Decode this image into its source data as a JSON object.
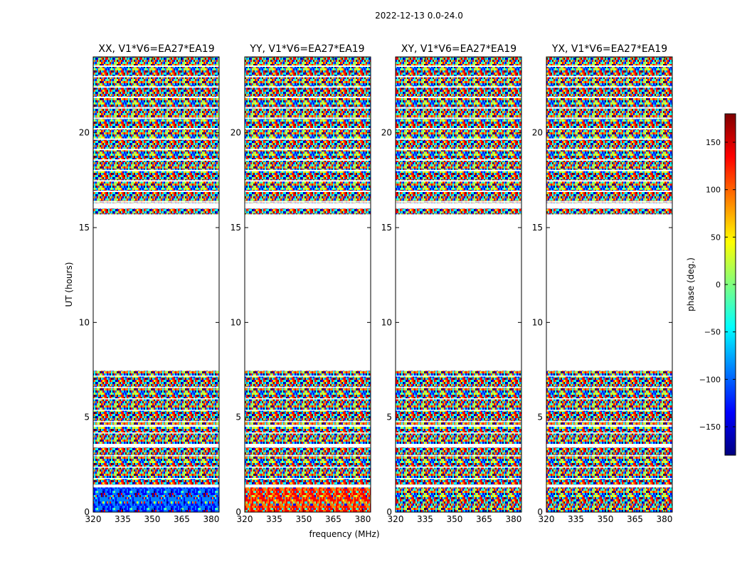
{
  "chart_data": {
    "type": "heatmap",
    "title": "2022-12-13 0.0-24.0",
    "xlabel": "frequency (MHz)",
    "ylabel": "UT (hours)",
    "xlim": [
      320,
      384
    ],
    "ylim": [
      0,
      24
    ],
    "x_ticks": [
      320,
      335,
      350,
      365,
      380
    ],
    "y_ticks": [
      0,
      5,
      10,
      15,
      20
    ],
    "panels": [
      {
        "title": "XX, V1*V6=EA27*EA19",
        "pol": "XX"
      },
      {
        "title": "YY, V1*V6=EA27*EA19",
        "pol": "YY"
      },
      {
        "title": "XY, V1*V6=EA27*EA19",
        "pol": "XY"
      },
      {
        "title": "YX, V1*V6=EA27*EA19",
        "pol": "YX"
      }
    ],
    "data_segments_hours": [
      {
        "start": 0.0,
        "end": 1.3
      },
      {
        "start": 1.45,
        "end": 3.4
      },
      {
        "start": 3.55,
        "end": 4.5
      },
      {
        "start": 4.6,
        "end": 7.45
      },
      {
        "start": 15.7,
        "end": 16.0
      },
      {
        "start": 16.3,
        "end": 24.0
      }
    ],
    "colorbar": {
      "label": "phase (deg.)",
      "range": [
        -180,
        180
      ],
      "ticks": [
        -150,
        -100,
        -50,
        0,
        50,
        100,
        150
      ],
      "tick_labels": [
        "−150",
        "−100",
        "−50",
        "0",
        "50",
        "100",
        "150"
      ],
      "colormap": "jet",
      "jet_colors": [
        "#00007f",
        "#0000ff",
        "#007fff",
        "#00ffff",
        "#7fff7f",
        "#ffff00",
        "#ff7f00",
        "#ff0000",
        "#7f0000"
      ]
    }
  }
}
